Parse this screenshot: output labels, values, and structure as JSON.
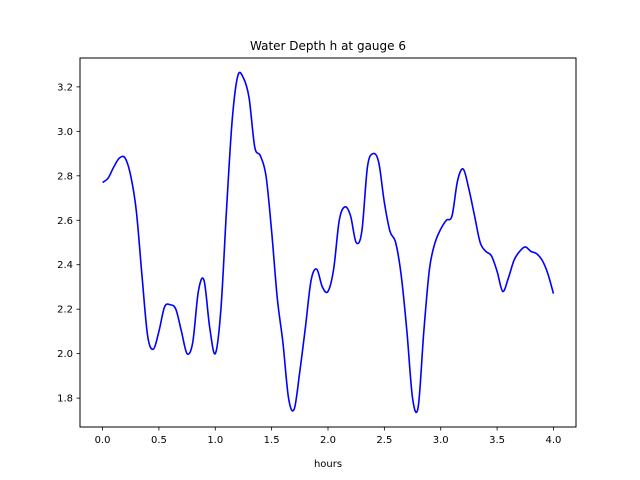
{
  "chart_data": {
    "type": "line",
    "title": "Water Depth h at gauge 6",
    "xlabel": "hours",
    "ylabel": "",
    "xlim": [
      -0.2,
      4.2
    ],
    "ylim": [
      1.67,
      3.33
    ],
    "xticks": [
      0.0,
      0.5,
      1.0,
      1.5,
      2.0,
      2.5,
      3.0,
      3.5,
      4.0
    ],
    "xtick_labels": [
      "0.0",
      "0.5",
      "1.0",
      "1.5",
      "2.0",
      "2.5",
      "3.0",
      "3.5",
      "4.0"
    ],
    "yticks": [
      1.8,
      2.0,
      2.2,
      2.4,
      2.6,
      2.8,
      3.0,
      3.2
    ],
    "ytick_labels": [
      "1.8",
      "2.0",
      "2.2",
      "2.4",
      "2.6",
      "2.8",
      "3.0",
      "3.2"
    ],
    "grid": false,
    "series": [
      {
        "color": "#0000ff",
        "x": [
          0.0,
          0.05,
          0.1,
          0.15,
          0.2,
          0.25,
          0.3,
          0.35,
          0.4,
          0.45,
          0.5,
          0.55,
          0.6,
          0.65,
          0.7,
          0.75,
          0.8,
          0.85,
          0.9,
          0.95,
          1.0,
          1.05,
          1.1,
          1.15,
          1.2,
          1.25,
          1.3,
          1.35,
          1.4,
          1.45,
          1.5,
          1.55,
          1.6,
          1.65,
          1.7,
          1.75,
          1.8,
          1.85,
          1.9,
          1.95,
          2.0,
          2.05,
          2.1,
          2.15,
          2.2,
          2.25,
          2.3,
          2.35,
          2.4,
          2.45,
          2.5,
          2.55,
          2.6,
          2.65,
          2.7,
          2.75,
          2.8,
          2.85,
          2.9,
          2.95,
          3.0,
          3.05,
          3.1,
          3.15,
          3.2,
          3.25,
          3.3,
          3.35,
          3.4,
          3.45,
          3.5,
          3.55,
          3.6,
          3.65,
          3.7,
          3.75,
          3.8,
          3.85,
          3.9,
          3.95,
          4.0
        ],
        "y": [
          2.77,
          2.79,
          2.84,
          2.88,
          2.88,
          2.8,
          2.64,
          2.35,
          2.08,
          2.02,
          2.1,
          2.21,
          2.22,
          2.2,
          2.1,
          2.0,
          2.05,
          2.28,
          2.33,
          2.12,
          2.0,
          2.2,
          2.65,
          3.05,
          3.25,
          3.24,
          3.15,
          2.93,
          2.89,
          2.8,
          2.55,
          2.25,
          2.05,
          1.8,
          1.75,
          1.92,
          2.12,
          2.33,
          2.38,
          2.3,
          2.28,
          2.38,
          2.6,
          2.66,
          2.62,
          2.5,
          2.55,
          2.84,
          2.9,
          2.86,
          2.68,
          2.55,
          2.5,
          2.35,
          2.1,
          1.8,
          1.76,
          2.1,
          2.38,
          2.5,
          2.56,
          2.6,
          2.62,
          2.78,
          2.83,
          2.74,
          2.62,
          2.5,
          2.46,
          2.44,
          2.37,
          2.28,
          2.34,
          2.42,
          2.46,
          2.48,
          2.46,
          2.45,
          2.42,
          2.36,
          2.27
        ]
      }
    ]
  }
}
